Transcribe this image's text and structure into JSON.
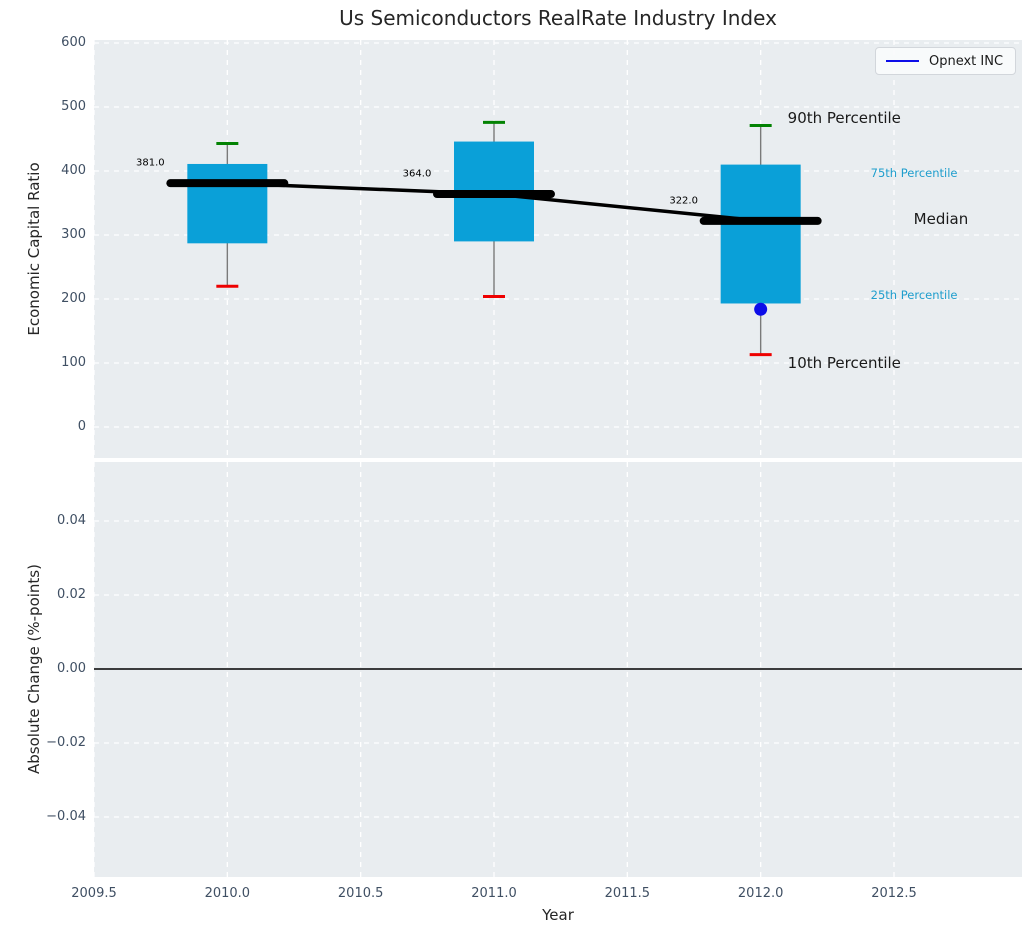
{
  "title": "Us Semiconductors RealRate Industry Index",
  "legend": {
    "label": "Opnext INC"
  },
  "axes": {
    "top": {
      "ylabel": "Economic Capital Ratio",
      "ytick_labels": [
        "600",
        "500",
        "400",
        "300",
        "200",
        "100",
        "0"
      ]
    },
    "bottom": {
      "ylabel": "Absolute Change (%-points)",
      "ytick_labels": [
        "0.04",
        "0.02",
        "0.00",
        "−0.02",
        "−0.04"
      ],
      "xlabel": "Year",
      "xtick_labels": [
        "2009.5",
        "2010.0",
        "2010.5",
        "2011.0",
        "2011.5",
        "2012.0",
        "2012.5"
      ]
    }
  },
  "annotations": [
    {
      "text": "90th Percentile",
      "anchor": "p90",
      "style": "big"
    },
    {
      "text": "75th Percentile",
      "anchor": "p75",
      "style": "small"
    },
    {
      "text": "Median",
      "anchor": "median",
      "style": "big"
    },
    {
      "text": "25th Percentile",
      "anchor": "p25",
      "style": "small"
    },
    {
      "text": "10th Percentile",
      "anchor": "p10",
      "style": "big"
    }
  ],
  "colors": {
    "box": "#0aa0d8",
    "p90_cap": "#038203",
    "p10_cap": "#ee0000",
    "whisker": "#7a7a7a",
    "median_line": "#000000",
    "company_marker": "#0d0de8",
    "annotation_small_text": "#1f9ecd",
    "annotation_big_text": "#1a1a1a",
    "plot_bg": "#e9edf0",
    "grid": "#ffffff",
    "tick_text": "#3f4f63",
    "zero_line": "#000000"
  },
  "chart_data": {
    "type": "boxplot",
    "title": "Us Semiconductors RealRate Industry Index",
    "xlabel": "Year",
    "xlim": [
      2009.5,
      2013.0
    ],
    "grid": true,
    "legend": [
      "Opnext INC"
    ],
    "legend_position": "upper right",
    "top_panel": {
      "ylabel": "Economic Capital Ratio",
      "ylim": [
        -48,
        605
      ],
      "yticks": [
        0,
        100,
        200,
        300,
        400,
        500,
        600
      ],
      "x": [
        2010,
        2011,
        2012
      ],
      "series": [
        {
          "name": "90th Percentile",
          "values": [
            443,
            476,
            471
          ]
        },
        {
          "name": "75th Percentile",
          "values": [
            411,
            446,
            410
          ]
        },
        {
          "name": "Median",
          "values": [
            381,
            364,
            322
          ]
        },
        {
          "name": "25th Percentile",
          "values": [
            287,
            290,
            193
          ]
        },
        {
          "name": "10th Percentile",
          "values": [
            220,
            204,
            113
          ]
        }
      ],
      "median_labels": [
        "381.0",
        "364.0",
        "322.0"
      ],
      "company_series": {
        "name": "Opnext INC",
        "points": [
          {
            "x": 2012,
            "y": 184
          }
        ]
      }
    },
    "bottom_panel": {
      "ylabel": "Absolute Change (%-points)",
      "ylim": [
        -0.056,
        0.056
      ],
      "yticks": [
        -0.04,
        -0.02,
        0.0,
        0.02,
        0.04
      ],
      "zero_line": 0.0
    }
  }
}
